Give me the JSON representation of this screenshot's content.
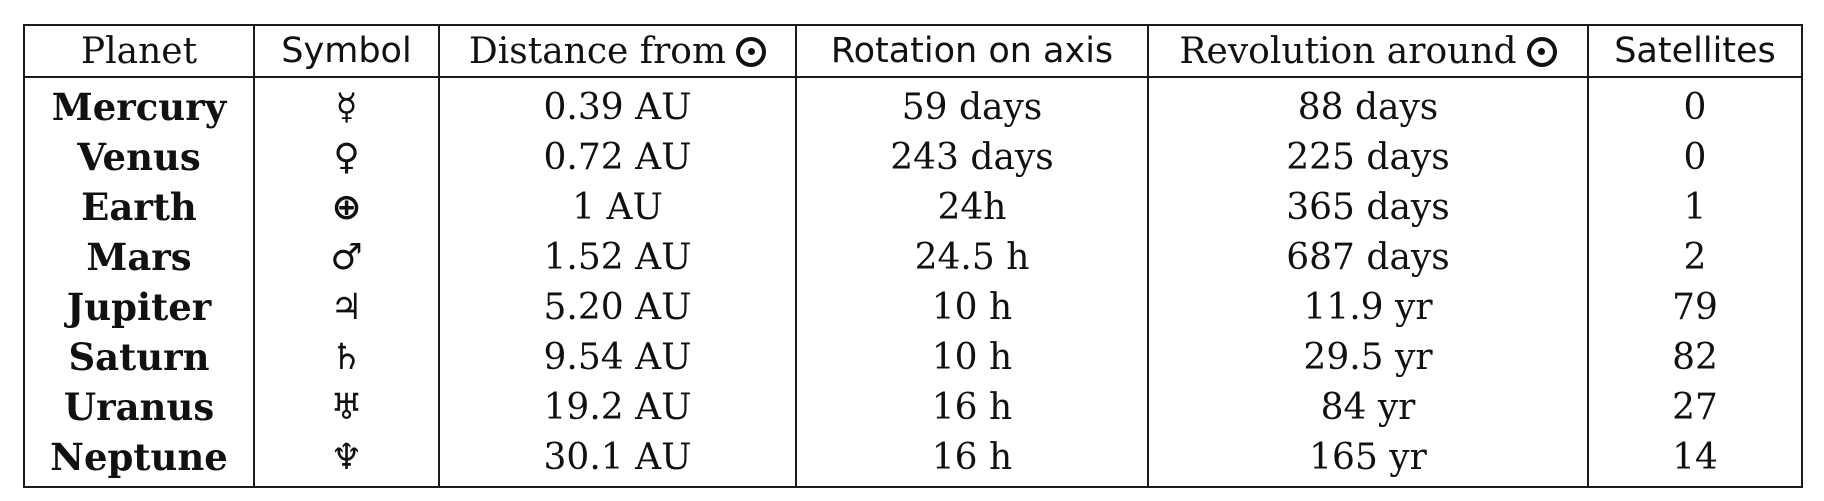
{
  "table": {
    "headers": {
      "planet": "Planet",
      "symbol": "Symbol",
      "distance": "Distance from",
      "rotation": "Rotation on axis",
      "revolution": "Revolution around",
      "satellites": "Satellites"
    },
    "sun_symbol_name": "sun-icon",
    "rows": [
      {
        "planet": "Mercury",
        "symbol": "☿",
        "distance": "0.39 AU",
        "rotation": "59 days",
        "revolution": "88 days",
        "satellites": "0"
      },
      {
        "planet": "Venus",
        "symbol": "♀",
        "distance": "0.72 AU",
        "rotation": "243 days",
        "revolution": "225 days",
        "satellites": "0"
      },
      {
        "planet": "Earth",
        "symbol": "⊕",
        "distance": "1 AU",
        "rotation": "24h",
        "revolution": "365 days",
        "satellites": "1"
      },
      {
        "planet": "Mars",
        "symbol": "♂",
        "distance": "1.52 AU",
        "rotation": "24.5 h",
        "revolution": "687 days",
        "satellites": "2"
      },
      {
        "planet": "Jupiter",
        "symbol": "♃",
        "distance": "5.20 AU",
        "rotation": "10 h",
        "revolution": "11.9 yr",
        "satellites": "79"
      },
      {
        "planet": "Saturn",
        "symbol": "♄",
        "distance": "9.54 AU",
        "rotation": "10 h",
        "revolution": "29.5 yr",
        "satellites": "82"
      },
      {
        "planet": "Uranus",
        "symbol": "♅",
        "distance": "19.2 AU",
        "rotation": "16 h",
        "revolution": "84 yr",
        "satellites": "27"
      },
      {
        "planet": "Neptune",
        "symbol": "♆",
        "distance": "30.1 AU",
        "rotation": "16 h",
        "revolution": "165 yr",
        "satellites": "14"
      }
    ]
  }
}
